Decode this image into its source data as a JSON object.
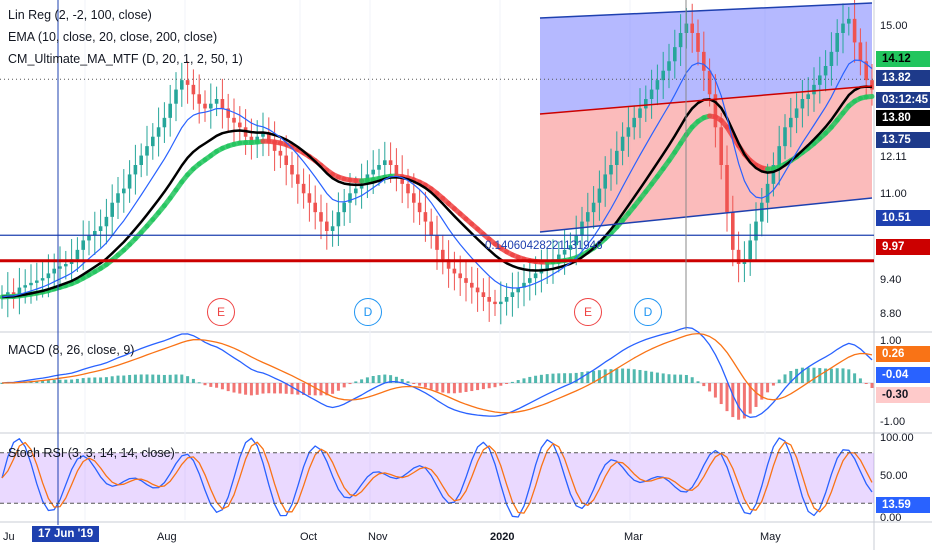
{
  "legends": {
    "linreg": "Lin Reg (2, -2, 100, close)",
    "ema": "EMA (10, close, 20, close, 200, close)",
    "cmma": "CM_Ultimate_MA_MTF (D, 20, 1, 2, 50, 1)",
    "macd": "MACD (8, 26, close, 9)",
    "stochrsi": "Stoch RSI (3, 3, 14, 14, close)"
  },
  "price_axis": {
    "ticks": [
      "15.00",
      "12.11",
      "11.00",
      "9.40",
      "8.80"
    ]
  },
  "price_tags": [
    {
      "label": "14.12",
      "bg": "#22c55e",
      "fg": "#000000"
    },
    {
      "label": "13.82",
      "bg": "#1e3a8a",
      "fg": "#ffffff"
    },
    {
      "label": "03:12:45",
      "bg": "#1e3a8a",
      "fg": "#ffffff"
    },
    {
      "label": "13.80",
      "bg": "#000000",
      "fg": "#ffffff"
    },
    {
      "label": "13.75",
      "bg": "#1e3a8a",
      "fg": "#ffffff"
    },
    {
      "label": "10.51",
      "bg": "#1e40af",
      "fg": "#ffffff"
    },
    {
      "label": "9.97",
      "bg": "#cc0000",
      "fg": "#ffffff"
    }
  ],
  "macd_axis": {
    "ticks": [
      "1.00",
      "-1.00"
    ],
    "tags": [
      {
        "label": "0.26",
        "bg": "#f97316",
        "fg": "#ffffff"
      },
      {
        "label": "-0.04",
        "bg": "#2962ff",
        "fg": "#ffffff"
      },
      {
        "label": "-0.30",
        "bg": "#fecaca",
        "fg": "#131722"
      }
    ]
  },
  "rsi_axis": {
    "ticks": [
      "100.00",
      "50.00",
      "0.00"
    ],
    "tags": [
      {
        "label": "13.59",
        "bg": "#2962ff",
        "fg": "#ffffff"
      }
    ]
  },
  "time_axis": {
    "labels": [
      "Ju",
      "Aug",
      "Oct",
      "Nov",
      "2020",
      "Mar",
      "May"
    ],
    "cursor_label": "17 Jun '19"
  },
  "annotation_text": "0.14060428221131946",
  "event_markers": [
    "E",
    "D",
    "E",
    "D"
  ],
  "chart_data": {
    "type": "candlestick",
    "interval": "daily",
    "price_ylim": [
      8.5,
      15.5
    ],
    "close": [
      9.2,
      9.3,
      9.25,
      9.4,
      9.45,
      9.5,
      9.55,
      9.6,
      9.7,
      9.8,
      9.85,
      9.9,
      10.0,
      10.2,
      10.4,
      10.5,
      10.6,
      10.7,
      10.9,
      11.2,
      11.4,
      11.5,
      11.8,
      12.0,
      12.2,
      12.4,
      12.6,
      12.8,
      13.0,
      13.3,
      13.6,
      13.8,
      13.7,
      13.5,
      13.3,
      13.2,
      13.3,
      13.4,
      13.2,
      13.0,
      12.9,
      12.8,
      12.6,
      12.5,
      12.6,
      12.7,
      12.5,
      12.3,
      12.2,
      12.0,
      11.8,
      11.6,
      11.4,
      11.2,
      11.0,
      10.8,
      10.6,
      10.7,
      11.0,
      11.2,
      11.4,
      11.5,
      11.6,
      11.8,
      11.9,
      12.0,
      12.1,
      12.0,
      11.8,
      11.6,
      11.4,
      11.2,
      11.0,
      10.8,
      10.5,
      10.2,
      10.0,
      9.8,
      9.7,
      9.6,
      9.5,
      9.4,
      9.3,
      9.2,
      9.1,
      9.05,
      9.1,
      9.2,
      9.3,
      9.4,
      9.5,
      9.6,
      9.7,
      9.8,
      9.9,
      10.0,
      10.1,
      10.2,
      10.3,
      10.5,
      10.8,
      11.0,
      11.2,
      11.5,
      11.8,
      12.0,
      12.3,
      12.6,
      12.8,
      13.0,
      13.2,
      13.4,
      13.6,
      13.8,
      14.0,
      14.2,
      14.5,
      14.8,
      15.0,
      14.8,
      14.4,
      14.0,
      13.5,
      12.8,
      12.0,
      11.0,
      10.2,
      9.9,
      10.0,
      10.4,
      10.8,
      11.2,
      11.6,
      12.0,
      12.4,
      12.8,
      13.0,
      13.2,
      13.4,
      13.5,
      13.7,
      13.9,
      14.1,
      14.4,
      14.8,
      15.0,
      15.1,
      14.6,
      14.2,
      13.8,
      13.6
    ],
    "series": [
      {
        "name": "EMA 10",
        "color": "#2962ff"
      },
      {
        "name": "EMA 20",
        "color": "#000000"
      },
      {
        "name": "CM_Ultimate_MA_MTF",
        "up_color": "#22c55e",
        "down_color": "#ef4444"
      },
      {
        "name": "MACD",
        "color": "#2962ff"
      },
      {
        "name": "Signal",
        "color": "#f97316"
      },
      {
        "name": "%K",
        "color": "#2962ff"
      },
      {
        "name": "%D",
        "color": "#f97316"
      }
    ],
    "horizontal_lines": [
      {
        "value": 10.51,
        "color": "#1e40af"
      },
      {
        "value": 9.97,
        "color": "#cc0000"
      }
    ],
    "linreg_channel": {
      "upper_color": "#1e40af",
      "mid_color": "#cc0000",
      "lower_color": "#1e40af"
    },
    "macd_ylim": [
      -1.3,
      1.3
    ],
    "rsi_ylim": [
      0,
      100
    ],
    "rsi_bands": [
      80,
      20
    ]
  }
}
